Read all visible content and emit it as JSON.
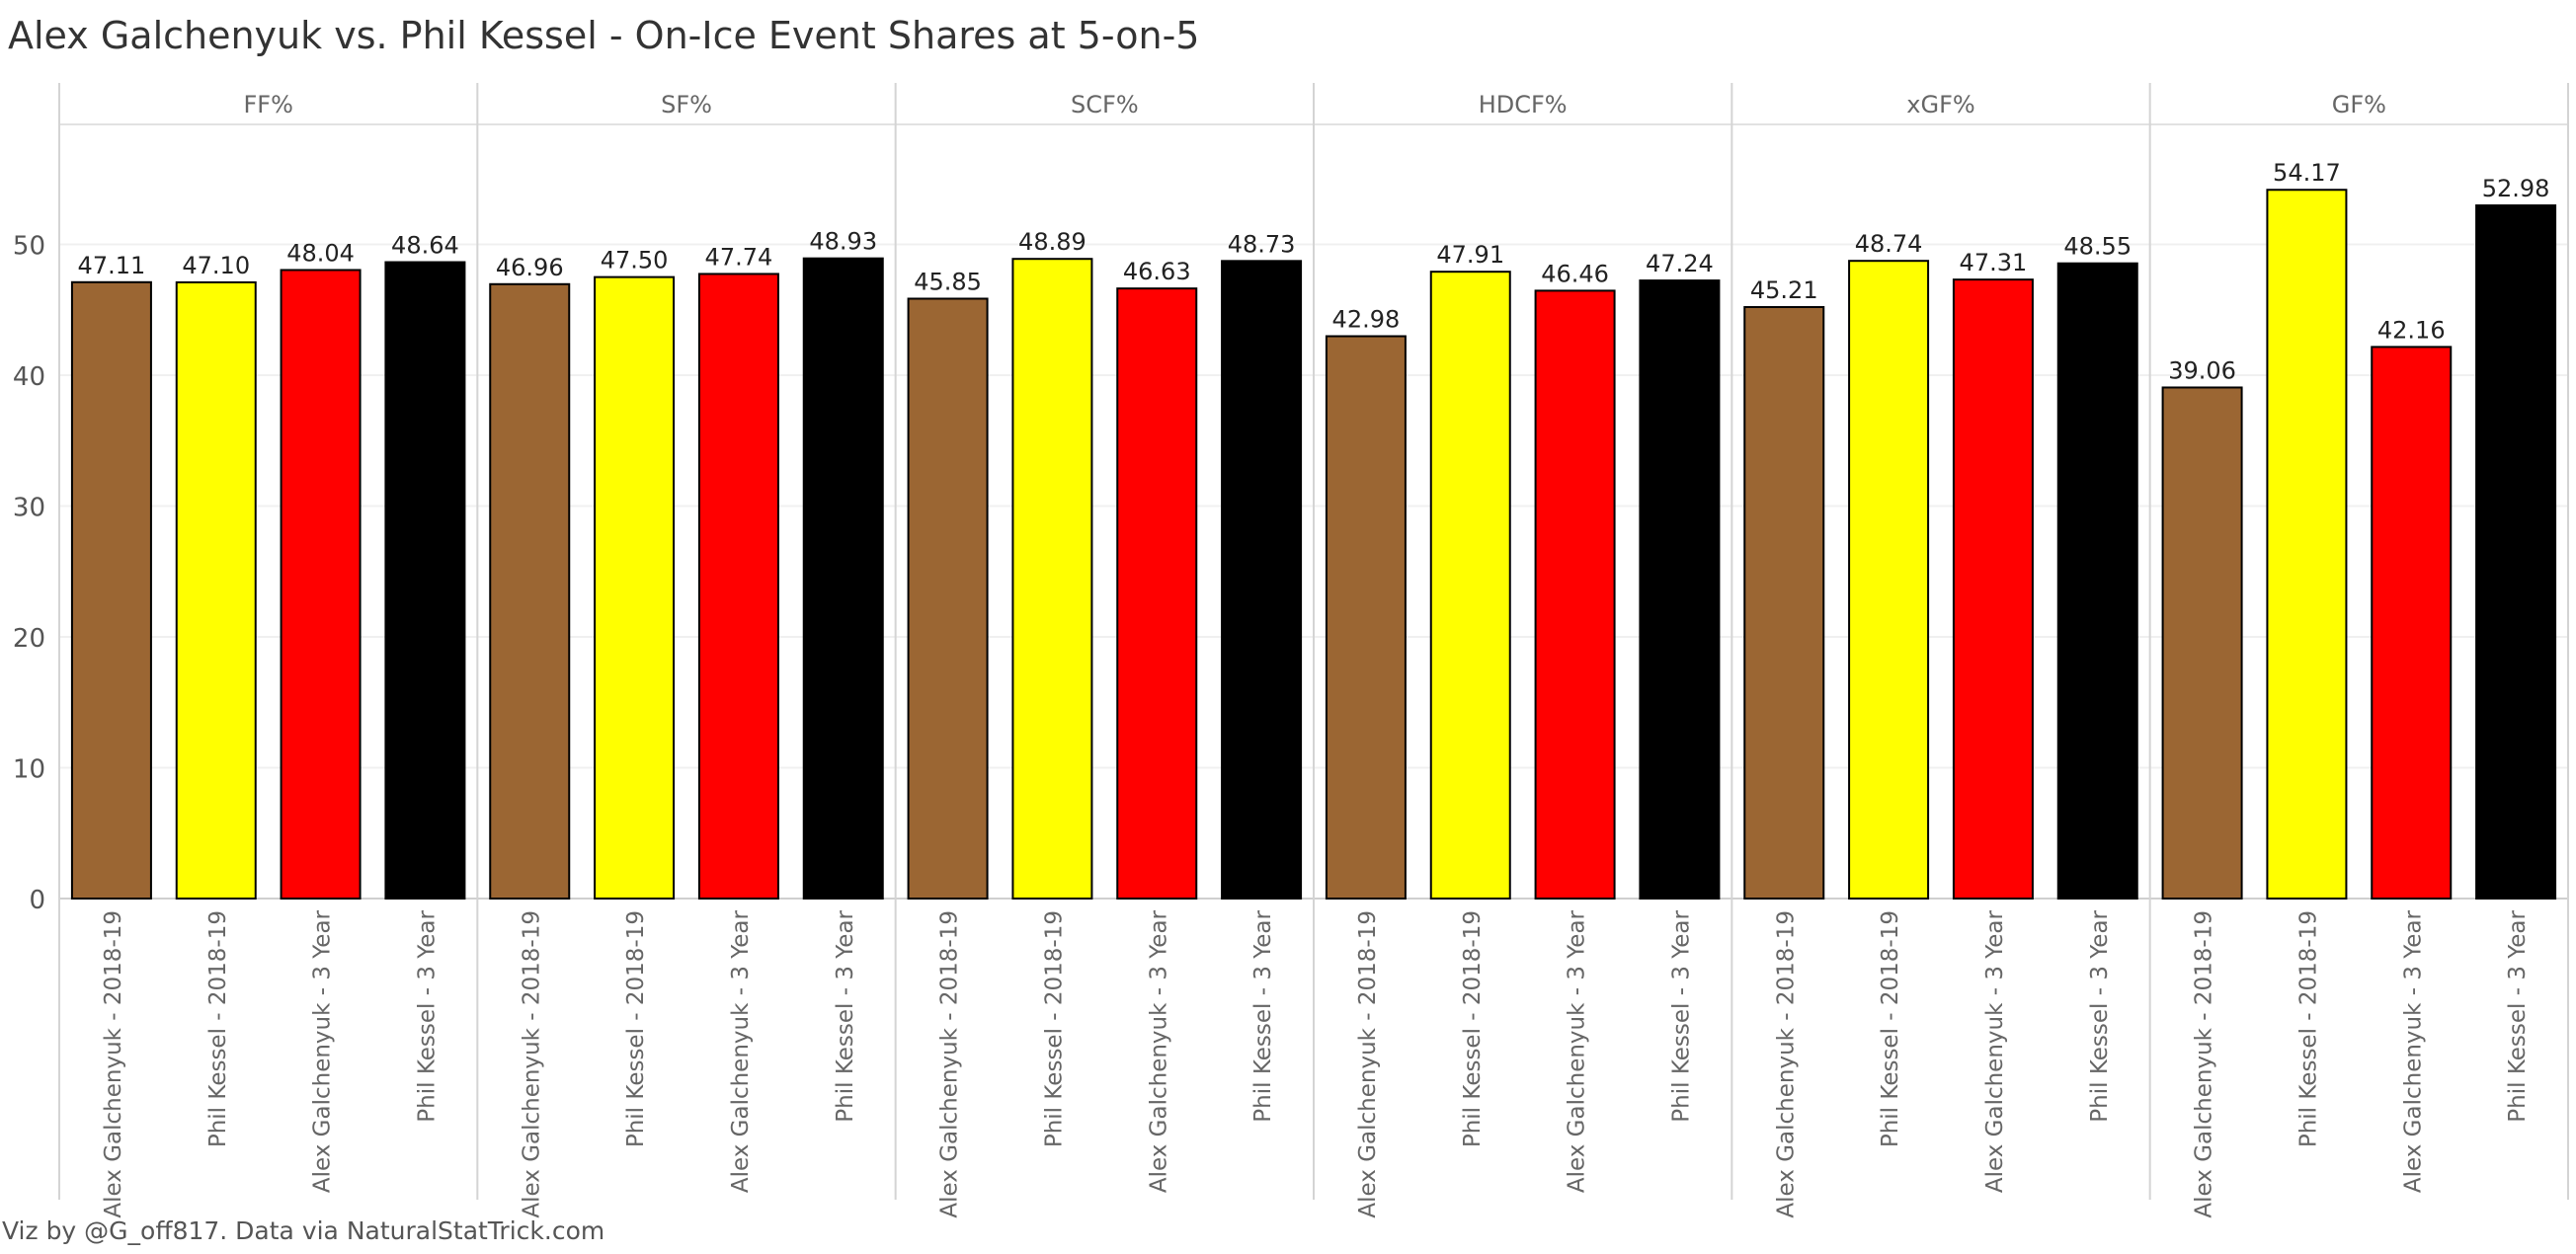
{
  "chart_data": {
    "type": "bar",
    "title": "Alex Galchenyuk vs. Phil Kessel - On-Ice Event Shares at 5-on-5",
    "footer": "Viz by @G_off817.  Data via NaturalStatTrick.com",
    "ylim": [
      0,
      60
    ],
    "yticks": [
      0,
      10,
      20,
      30,
      40,
      50
    ],
    "grid": true,
    "categories": [
      "Alex Galchenyuk - 2018-19",
      "Phil Kessel - 2018-19",
      "Alex Galchenyuk - 3 Year",
      "Phil Kessel - 3 Year"
    ],
    "colors": [
      "#9b6633",
      "#ffff00",
      "#ff0000",
      "#000000"
    ],
    "panels": [
      {
        "name": "FF%",
        "values": [
          47.11,
          47.1,
          48.04,
          48.64
        ],
        "labels": [
          "47.11",
          "47.10",
          "48.04",
          "48.64"
        ]
      },
      {
        "name": "SF%",
        "values": [
          46.96,
          47.5,
          47.74,
          48.93
        ],
        "labels": [
          "46.96",
          "47.50",
          "47.74",
          "48.93"
        ]
      },
      {
        "name": "SCF%",
        "values": [
          45.85,
          48.89,
          46.63,
          48.73
        ],
        "labels": [
          "45.85",
          "48.89",
          "46.63",
          "48.73"
        ]
      },
      {
        "name": "HDCF%",
        "values": [
          42.98,
          47.91,
          46.46,
          47.24
        ],
        "labels": [
          "42.98",
          "47.91",
          "46.46",
          "47.24"
        ]
      },
      {
        "name": "xGF%",
        "values": [
          45.21,
          48.74,
          47.31,
          48.55
        ],
        "labels": [
          "45.21",
          "48.74",
          "47.31",
          "48.55"
        ]
      },
      {
        "name": "GF%",
        "values": [
          39.06,
          54.17,
          42.16,
          52.98
        ],
        "labels": [
          "39.06",
          "54.17",
          "42.16",
          "52.98"
        ]
      }
    ]
  }
}
